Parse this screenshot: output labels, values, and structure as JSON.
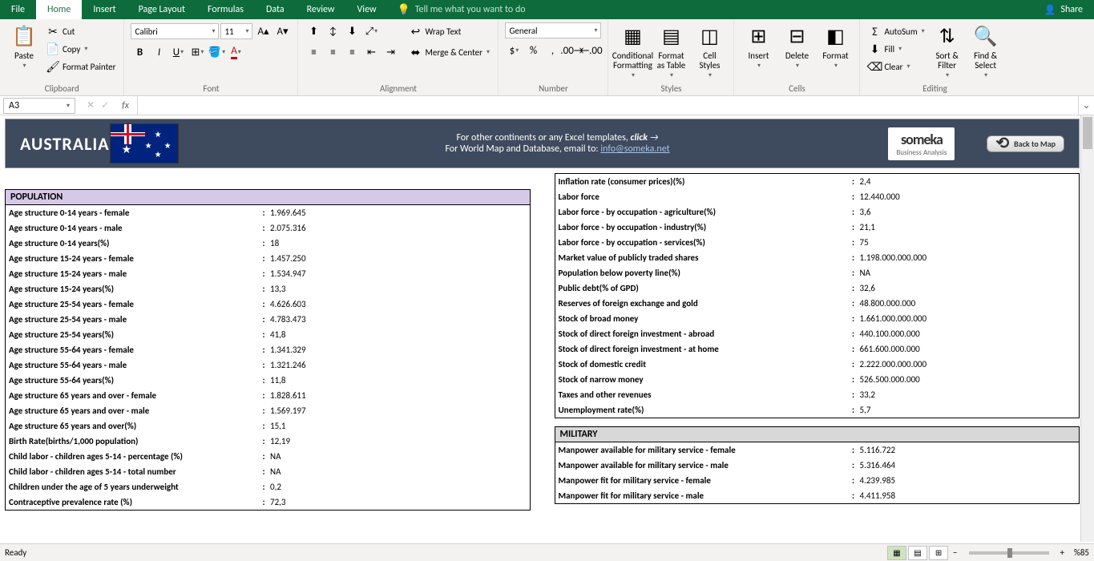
{
  "tabs": [
    "File",
    "Home",
    "Insert",
    "Page Layout",
    "Formulas",
    "Data",
    "Review",
    "View"
  ],
  "active_tab": "Home",
  "tell_me": "Tell me what you want to do",
  "share": "Share",
  "ribbon": {
    "clipboard": {
      "paste": "Paste",
      "cut": "Cut",
      "copy": "Copy",
      "fp": "Format Painter",
      "label": "Clipboard"
    },
    "font": {
      "name": "Calibri",
      "size": "11",
      "label": "Font"
    },
    "alignment": {
      "wrap": "Wrap Text",
      "merge": "Merge & Center",
      "label": "Alignment"
    },
    "number": {
      "fmt": "General",
      "label": "Number"
    },
    "styles": {
      "cf": "Conditional Formatting",
      "fat": "Format as Table",
      "cs": "Cell Styles",
      "label": "Styles"
    },
    "cells": {
      "ins": "Insert",
      "del": "Delete",
      "fmt": "Format",
      "label": "Cells"
    },
    "editing": {
      "as": "AutoSum",
      "fill": "Fill",
      "clr": "Clear",
      "sf": "Sort & Filter",
      "fs": "Find & Select",
      "label": "Editing"
    }
  },
  "namebox": "A3",
  "header": {
    "country": "AUSTRALIA",
    "line1_a": "For other continents or any Excel templates,",
    "line1_b": "click",
    "line2_a": "For World Map and Database, email to:",
    "line2_b": "info@someka.net",
    "someka": "someka",
    "someka_sub": "Business Analysis",
    "back": "Back to Map"
  },
  "population_hdr": "POPULATION",
  "military_hdr": "MILITARY",
  "popL": [
    {
      "l": "Age structure 0-14 years - female",
      "v": "1.969.645"
    },
    {
      "l": "Age structure 0-14 years - male",
      "v": "2.075.316"
    },
    {
      "l": "Age structure 0-14 years(%)",
      "v": "18"
    },
    {
      "l": "Age structure 15-24 years - female",
      "v": "1.457.250"
    },
    {
      "l": "Age structure 15-24 years - male",
      "v": "1.534.947"
    },
    {
      "l": "Age structure 15-24 years(%)",
      "v": "13,3"
    },
    {
      "l": "Age structure 25-54 years - female",
      "v": "4.626.603"
    },
    {
      "l": "Age structure 25-54 years - male",
      "v": "4.783.473"
    },
    {
      "l": "Age structure 25-54 years(%)",
      "v": "41,8"
    },
    {
      "l": "Age structure 55-64 years - female",
      "v": "1.341.329"
    },
    {
      "l": "Age structure 55-64 years - male",
      "v": "1.321.246"
    },
    {
      "l": "Age structure 55-64 years(%)",
      "v": "11,8"
    },
    {
      "l": "Age structure 65 years and over - female",
      "v": "1.828.611"
    },
    {
      "l": "Age structure 65 years and over - male",
      "v": "1.569.197"
    },
    {
      "l": "Age structure 65 years and over(%)",
      "v": "15,1"
    },
    {
      "l": "Birth Rate(births/1,000 population)",
      "v": "12,19"
    },
    {
      "l": "Child labor - children ages 5-14 - percentage (%)",
      "v": "NA"
    },
    {
      "l": "Child labor - children ages 5-14 - total number",
      "v": "NA"
    },
    {
      "l": "Children under the age of 5 years underweight",
      "v": "0,2"
    },
    {
      "l": "Contraceptive prevalence rate (%)",
      "v": "72,3"
    }
  ],
  "econR": [
    {
      "l": "Inflation rate (consumer prices)(%)",
      "v": "2,4"
    },
    {
      "l": "Labor force",
      "v": "12.440.000"
    },
    {
      "l": "Labor force - by occupation - agriculture(%)",
      "v": "3,6"
    },
    {
      "l": "Labor force - by occupation - industry(%)",
      "v": "21,1"
    },
    {
      "l": "Labor force - by occupation - services(%)",
      "v": "75"
    },
    {
      "l": "Market value of publicly traded shares",
      "v": "1.198.000.000.000"
    },
    {
      "l": "Population below poverty line(%)",
      "v": "NA"
    },
    {
      "l": "Public debt(% of GPD)",
      "v": "32,6"
    },
    {
      "l": "Reserves of foreign exchange and gold",
      "v": "48.800.000.000"
    },
    {
      "l": "Stock of broad money",
      "v": "1.661.000.000.000"
    },
    {
      "l": "Stock of direct foreign investment - abroad",
      "v": "440.100.000.000"
    },
    {
      "l": "Stock of direct foreign investment - at home",
      "v": "661.600.000.000"
    },
    {
      "l": "Stock of domestic credit",
      "v": "2.222.000.000.000"
    },
    {
      "l": "Stock of narrow money",
      "v": "526.500.000.000"
    },
    {
      "l": "Taxes and other revenues",
      "v": "33,2"
    },
    {
      "l": "Unemployment rate(%)",
      "v": "5,7"
    }
  ],
  "milR": [
    {
      "l": "Manpower available for military service - female",
      "v": "5.116.722"
    },
    {
      "l": "Manpower available for military service - male",
      "v": "5.316.464"
    },
    {
      "l": "Manpower fit for military service - female",
      "v": "4.239.985"
    },
    {
      "l": "Manpower fit for military service - male",
      "v": "4.411.958"
    }
  ],
  "status": {
    "ready": "Ready",
    "zoom": "%85"
  }
}
